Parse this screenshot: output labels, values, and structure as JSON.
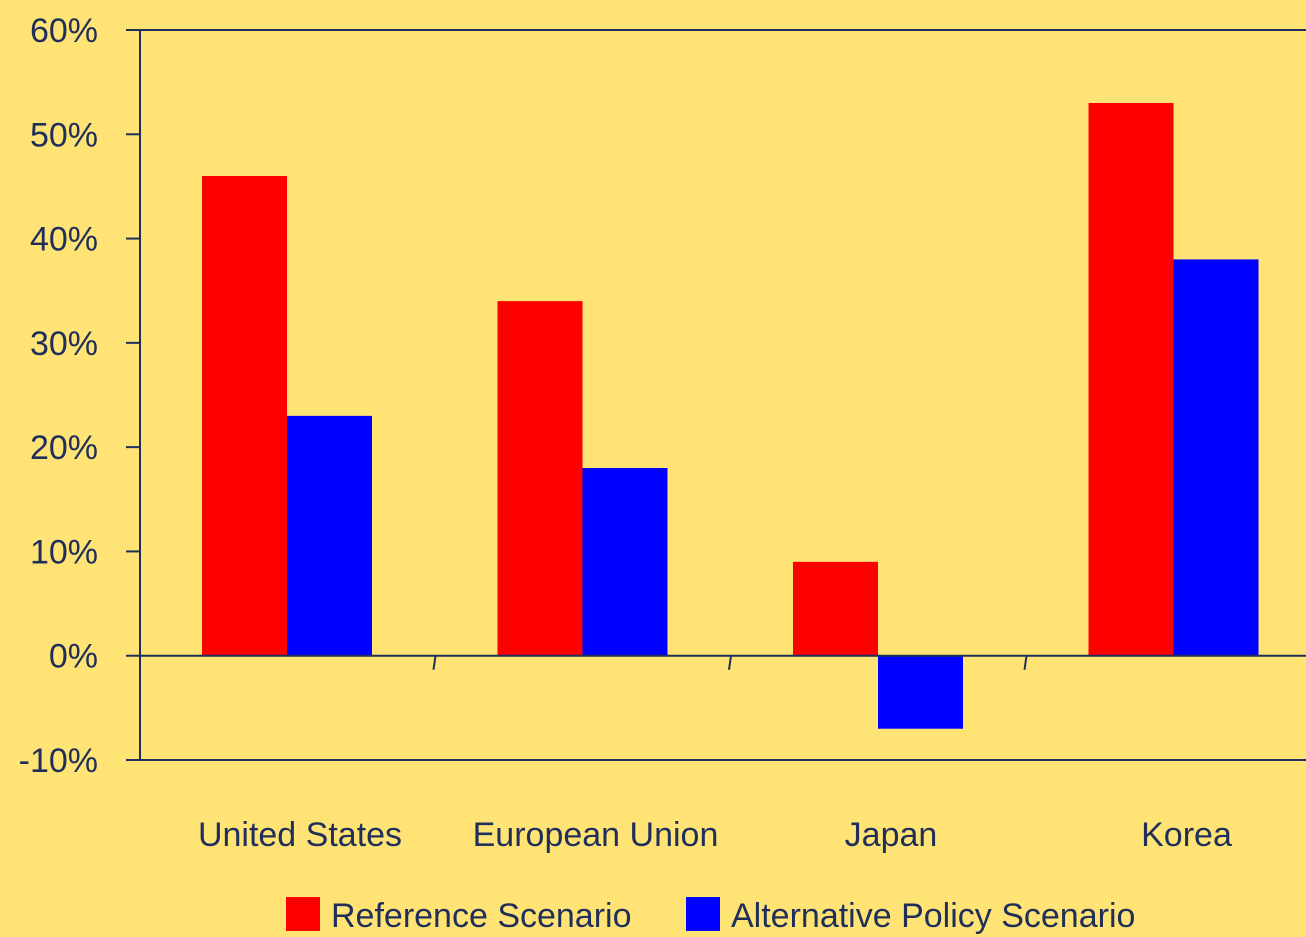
{
  "chart_data": {
    "type": "bar",
    "categories": [
      "United States",
      "European Union",
      "Japan",
      "Korea"
    ],
    "series": [
      {
        "name": "Reference Scenario",
        "values": [
          46,
          34,
          9,
          53
        ],
        "color": "#FF0000"
      },
      {
        "name": "Alternative Policy Scenario",
        "values": [
          23,
          18,
          -7,
          38
        ],
        "color": "#0000FF"
      }
    ],
    "ylim": [
      -10,
      60
    ],
    "yticks": [
      -10,
      0,
      10,
      20,
      30,
      40,
      50,
      60
    ],
    "ytick_labels": [
      "-10%",
      "0%",
      "10%",
      "20%",
      "30%",
      "40%",
      "50%",
      "60%"
    ],
    "grid": false,
    "legend_position": "bottom",
    "background_color": "#FFE375",
    "axis_color": "#1F2F5A"
  }
}
